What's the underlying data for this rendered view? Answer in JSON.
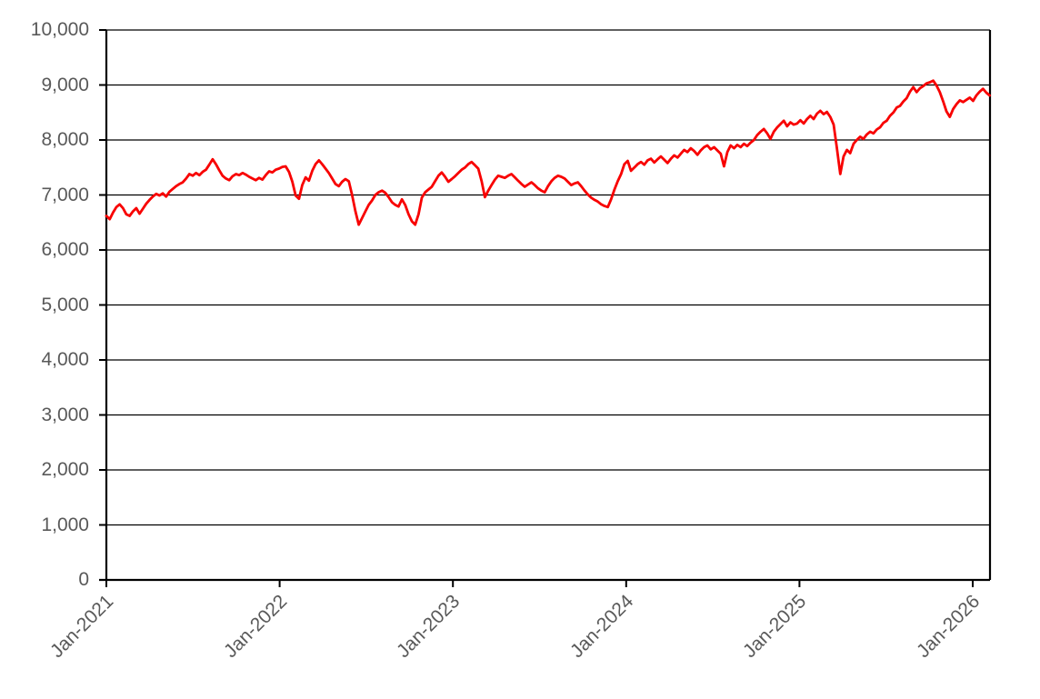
{
  "chart_data": {
    "type": "line",
    "title": "",
    "legend": "none",
    "grid": {
      "horizontal": true,
      "vertical": false
    },
    "x_axis": {
      "tick_labels": [
        "Jan-2021",
        "Jan-2022",
        "Jan-2023",
        "Jan-2024",
        "Jan-2025",
        "Jan-2026"
      ],
      "start_label": "Jan-2021",
      "points_per_year": 52.18,
      "total_points": 267
    },
    "y_axis": {
      "tick_labels": [
        "0",
        "1,000",
        "2,000",
        "3,000",
        "4,000",
        "5,000",
        "6,000",
        "7,000",
        "8,000",
        "9,000",
        "10,000"
      ],
      "min": 0,
      "max": 10000,
      "step": 1000
    },
    "series": [
      {
        "color": "#F80000",
        "line_width": 2.8,
        "sampling": "weekly",
        "values": [
          6620,
          6560,
          6680,
          6780,
          6830,
          6760,
          6650,
          6620,
          6700,
          6760,
          6660,
          6750,
          6840,
          6910,
          6970,
          7020,
          6990,
          7030,
          6970,
          7060,
          7110,
          7160,
          7200,
          7230,
          7300,
          7380,
          7350,
          7400,
          7360,
          7420,
          7460,
          7550,
          7650,
          7560,
          7450,
          7350,
          7300,
          7270,
          7340,
          7380,
          7360,
          7400,
          7370,
          7330,
          7300,
          7270,
          7310,
          7280,
          7360,
          7430,
          7410,
          7460,
          7480,
          7510,
          7520,
          7420,
          7240,
          6990,
          6930,
          7180,
          7320,
          7260,
          7440,
          7560,
          7630,
          7560,
          7480,
          7400,
          7300,
          7200,
          7160,
          7240,
          7290,
          7250,
          7000,
          6700,
          6460,
          6580,
          6700,
          6820,
          6900,
          7000,
          7050,
          7080,
          7040,
          6960,
          6870,
          6820,
          6790,
          6920,
          6820,
          6650,
          6520,
          6460,
          6650,
          6950,
          7050,
          7100,
          7150,
          7250,
          7350,
          7410,
          7330,
          7240,
          7290,
          7340,
          7400,
          7460,
          7500,
          7560,
          7600,
          7540,
          7480,
          7250,
          6960,
          7080,
          7180,
          7280,
          7350,
          7330,
          7310,
          7350,
          7380,
          7320,
          7260,
          7200,
          7150,
          7190,
          7230,
          7180,
          7120,
          7080,
          7050,
          7160,
          7250,
          7310,
          7350,
          7330,
          7300,
          7240,
          7180,
          7210,
          7230,
          7160,
          7080,
          7010,
          6950,
          6910,
          6880,
          6830,
          6800,
          6780,
          6920,
          7100,
          7250,
          7380,
          7560,
          7620,
          7440,
          7500,
          7560,
          7600,
          7550,
          7630,
          7660,
          7590,
          7650,
          7700,
          7640,
          7580,
          7660,
          7720,
          7680,
          7750,
          7820,
          7780,
          7850,
          7800,
          7730,
          7810,
          7870,
          7900,
          7830,
          7870,
          7810,
          7750,
          7520,
          7780,
          7900,
          7850,
          7910,
          7870,
          7930,
          7890,
          7950,
          8000,
          8090,
          8150,
          8200,
          8120,
          8020,
          8150,
          8230,
          8290,
          8350,
          8250,
          8320,
          8280,
          8300,
          8360,
          8300,
          8380,
          8440,
          8380,
          8480,
          8530,
          8470,
          8510,
          8420,
          8280,
          7850,
          7380,
          7700,
          7820,
          7760,
          7930,
          8000,
          8060,
          8020,
          8100,
          8150,
          8120,
          8190,
          8230,
          8310,
          8350,
          8440,
          8500,
          8590,
          8620,
          8700,
          8760,
          8880,
          8960,
          8870,
          8940,
          8980,
          9030,
          9050,
          9080,
          8990,
          8870,
          8700,
          8520,
          8420,
          8560,
          8650,
          8720,
          8690,
          8730,
          8770,
          8710,
          8810,
          8880,
          8930,
          8860,
          8810
        ]
      }
    ]
  },
  "style": {
    "background": "#FFFFFF",
    "label_color": "#595959",
    "axis_color": "#000000",
    "gridline_color": "#000000"
  }
}
